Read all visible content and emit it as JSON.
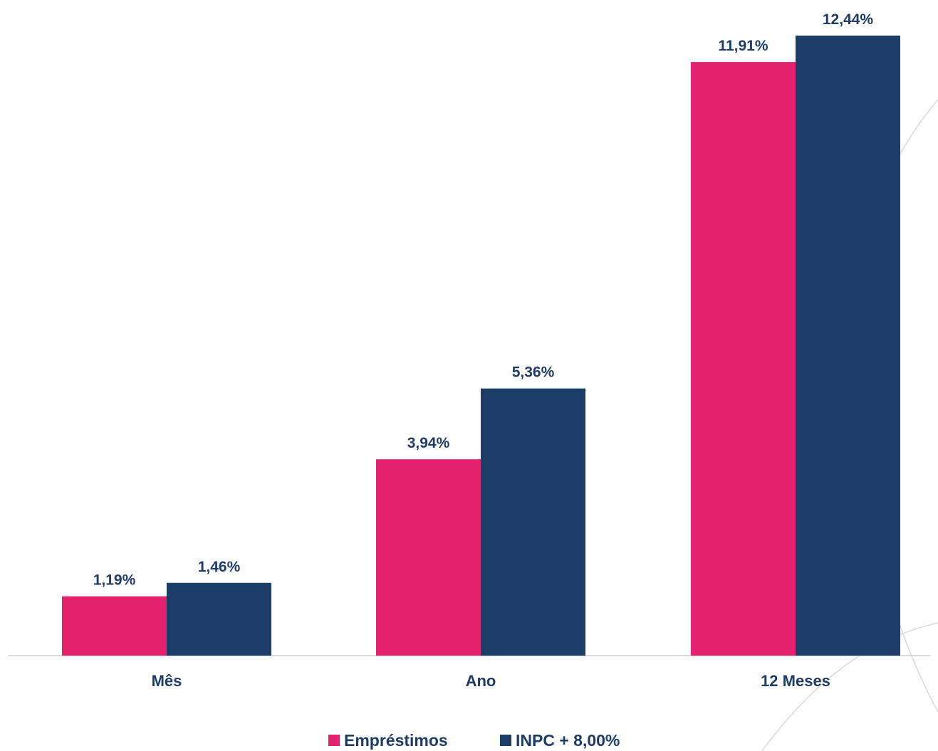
{
  "colors": {
    "emprestimos": "#e5226f",
    "inpc": "#1d3d69",
    "label_text": "#1d3d69",
    "axis_line": "#cccccc",
    "decor_arc": "#d8d8d8"
  },
  "chart_data": {
    "type": "bar",
    "title": "",
    "xlabel": "",
    "ylabel": "",
    "categories": [
      "Mês",
      "Ano",
      "12 Meses"
    ],
    "series": [
      {
        "name": "Empréstimos",
        "values": [
          1.19,
          3.94,
          11.91
        ],
        "labels": [
          "1,19%",
          "3,94%",
          "11,91%"
        ],
        "color": "#e5226f"
      },
      {
        "name": "INPC + 8,00%",
        "values": [
          1.46,
          5.36,
          12.44
        ],
        "labels": [
          "1,46%",
          "5,36%",
          "12,44%"
        ],
        "color": "#1d3d69"
      }
    ],
    "ylim": [
      0,
      12.44
    ],
    "grid": false,
    "legend": "bottom-center"
  }
}
